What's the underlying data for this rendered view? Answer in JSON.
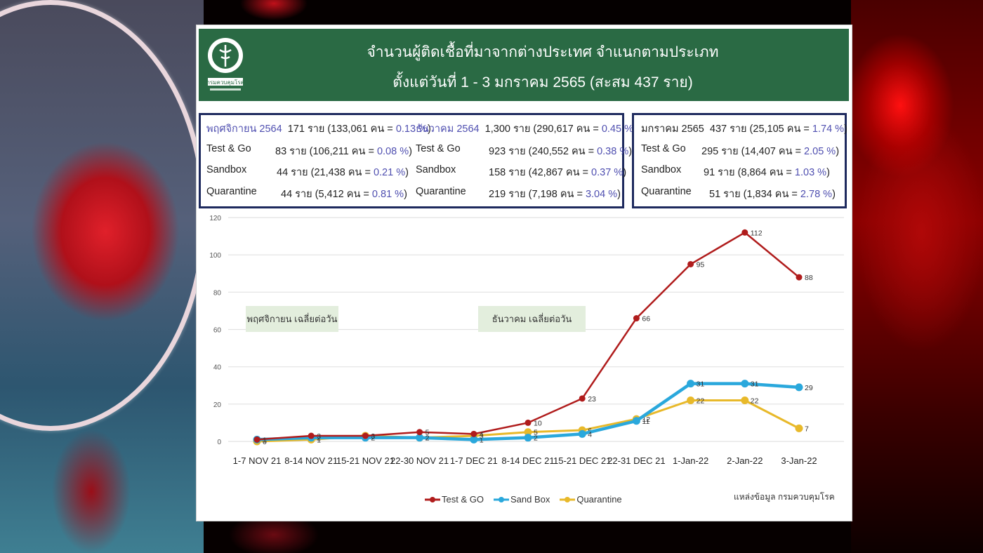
{
  "header": {
    "title_line1": "จำนวนผู้ติดเชื้อที่มาจากต่างประเทศ จำแนกตามประเภท",
    "title_line2": "ตั้งแต่วันที่  1 - 3  มกราคม  2565 (สะสม 437 ราย)",
    "logo_caption": "กรมควบคุมโรค"
  },
  "stats": {
    "november": {
      "heading": "พฤศจิกายน 2564",
      "total": "171 ราย (133,061 คน = ",
      "total_pct": "0.13 %",
      "rows": [
        {
          "label": "Test & Go",
          "value": "83  ราย (106,211 คน = ",
          "pct": "0.08 %"
        },
        {
          "label": "Sandbox",
          "value": "44  ราย  (21,438 คน  = ",
          "pct": "0.21 %"
        },
        {
          "label": "Quarantine",
          "value": "44  ราย  (5,412 คน   = ",
          "pct": "0.81 %"
        }
      ]
    },
    "december": {
      "heading": "ธันวาคม 2564",
      "total": "1,300 ราย (290,617 คน = ",
      "total_pct": "0.45 %",
      "rows": [
        {
          "label": "Test & Go",
          "value": "923  ราย (240,552 คน = ",
          "pct": "0.38 %"
        },
        {
          "label": "Sandbox",
          "value": "158  ราย (42,867 คน   = ",
          "pct": "0.37 %"
        },
        {
          "label": "Quarantine",
          "value": "219  ราย (7,198 คน    = ",
          "pct": "3.04 %"
        }
      ]
    },
    "january": {
      "heading": "มกราคม 2565",
      "total": "437 ราย (25,105 คน = ",
      "total_pct": "1.74 %",
      "rows": [
        {
          "label": "Test & Go",
          "value": "295 ราย (14,407 คน = ",
          "pct": "2.05 %"
        },
        {
          "label": "Sandbox",
          "value": "91 ราย (8,864 คน = ",
          "pct": "1.03 %"
        },
        {
          "label": "Quarantine",
          "value": "51 ราย (1,834 คน    = ",
          "pct": "2.78 %"
        }
      ]
    }
  },
  "annotations": {
    "november_avg": "พฤศจิกายน เฉลี่ยต่อวัน",
    "december_avg": "ธันวาคม เฉลี่ยต่อวัน"
  },
  "source": "แหล่งข้อมูล กรมควบคุมโรค",
  "colors": {
    "header_green": "#2a6a44",
    "test_go": "#b01c1c",
    "sandbox": "#2aa8dc",
    "quarantine": "#e8b92a",
    "box_border": "#1e2a5e",
    "pct_blue": "#4f4fb0"
  },
  "chart_data": {
    "type": "line",
    "title": "",
    "xlabel": "",
    "ylabel": "",
    "ylim": [
      0,
      120
    ],
    "yticks": [
      0,
      20,
      40,
      60,
      80,
      100,
      120
    ],
    "grid": true,
    "legend_position": "bottom",
    "categories": [
      "1-7 NOV 21",
      "8-14 NOV 21",
      "15-21 NOV 21",
      "22-30 NOV 21",
      "1-7 DEC 21",
      "8-14 DEC 21",
      "15-21 DEC 21",
      "22-31 DEC 21",
      "1-Jan-22",
      "2-Jan-22",
      "3-Jan-22"
    ],
    "series": [
      {
        "name": "Test & GO",
        "color": "#b01c1c",
        "values": [
          1,
          3,
          3,
          5,
          4,
          10,
          23,
          66,
          95,
          112,
          88
        ]
      },
      {
        "name": "Sand Box",
        "color": "#2aa8dc",
        "values": [
          1,
          2,
          2,
          2,
          1,
          2,
          4,
          11,
          31,
          31,
          29
        ]
      },
      {
        "name": "Quarantine",
        "color": "#e8b92a",
        "values": [
          0,
          1,
          3,
          2,
          3,
          5,
          6,
          12,
          22,
          22,
          7
        ]
      }
    ],
    "annotations": [
      "พฤศจิกายน เฉลี่ยต่อวัน",
      "ธันวาคม เฉลี่ยต่อวัน"
    ]
  }
}
